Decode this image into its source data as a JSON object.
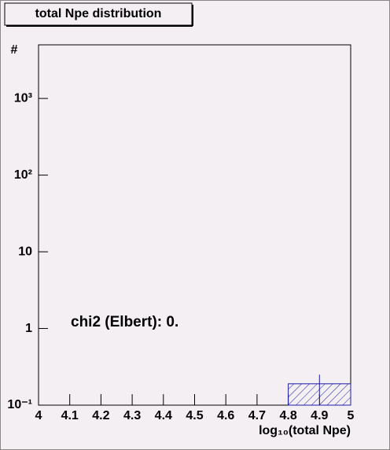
{
  "chart_data": {
    "type": "histogram",
    "title": "total Npe distribution",
    "x_label": "log₁₀(total Npe)",
    "y_label": "#",
    "annotation": "chi2 (Elbert): 0.",
    "bins": [
      4.0,
      4.2,
      4.4,
      4.6,
      4.8,
      5.0
    ],
    "values": [
      0,
      0,
      0,
      0,
      0.19
    ],
    "errors": [
      0,
      0,
      0,
      0,
      0.06
    ],
    "color": "#1c1ca8",
    "xlim": [
      4,
      5
    ],
    "xticks": [
      4,
      4.1,
      4.2,
      4.3,
      4.4,
      4.5,
      4.6,
      4.7,
      4.8,
      4.9,
      5
    ],
    "ylim": [
      0.1,
      5000
    ],
    "log_y": true,
    "yticks": [
      {
        "value": 0.1,
        "label": "10⁻¹"
      },
      1,
      10,
      {
        "value": 100,
        "label": "10²"
      },
      {
        "value": 1000,
        "label": "10³"
      }
    ]
  }
}
